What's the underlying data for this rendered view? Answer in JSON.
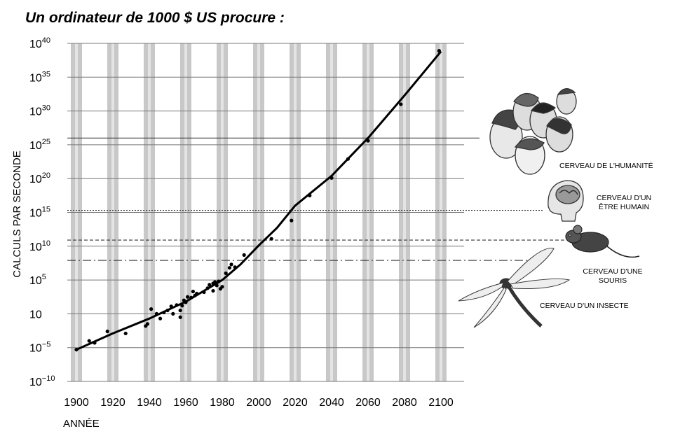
{
  "chart_data": {
    "type": "scatter",
    "title": "Un ordinateur de 1000 $ US procure :",
    "xlabel": "ANNÉE",
    "ylabel": "CALCULS PAR SECONDE",
    "y_scale": "log10",
    "xlim": [
      1900,
      2100
    ],
    "ylim_exponent": [
      -10,
      40
    ],
    "x_ticks": [
      "1900",
      "1920",
      "1940",
      "1960",
      "1980",
      "2000",
      "2020",
      "2040",
      "2060",
      "2080",
      "2100"
    ],
    "y_ticks": [
      {
        "base": "10",
        "exp": "40"
      },
      {
        "base": "10",
        "exp": "35"
      },
      {
        "base": "10",
        "exp": "30"
      },
      {
        "base": "10",
        "exp": "25"
      },
      {
        "base": "10",
        "exp": "20"
      },
      {
        "base": "10",
        "exp": "15"
      },
      {
        "base": "10",
        "exp": "10"
      },
      {
        "base": "10",
        "exp": "5"
      },
      {
        "base": "10",
        "exp": ""
      },
      {
        "base": "10",
        "exp": "−5"
      },
      {
        "base": "10",
        "exp": "−10"
      }
    ],
    "grid": true,
    "series": [
      {
        "values_note": "",
        "points": [
          [
            1900,
            -5.3
          ],
          [
            1907,
            -4.0
          ],
          [
            1910,
            -4.3
          ],
          [
            1917,
            -2.6
          ],
          [
            1927,
            -2.9
          ],
          [
            1938,
            -1.8
          ],
          [
            1939,
            -1.5
          ],
          [
            1941,
            0.7
          ],
          [
            1944,
            0.0
          ],
          [
            1946,
            -0.7
          ],
          [
            1948,
            0.2
          ],
          [
            1950,
            0.5
          ],
          [
            1952,
            1.1
          ],
          [
            1953,
            0.0
          ],
          [
            1955,
            1.3
          ],
          [
            1957,
            -0.5
          ],
          [
            1957,
            0.5
          ],
          [
            1958,
            1.2
          ],
          [
            1959,
            2.0
          ],
          [
            1960,
            1.7
          ],
          [
            1961,
            2.5
          ],
          [
            1963,
            2.4
          ],
          [
            1964,
            3.3
          ],
          [
            1965,
            2.7
          ],
          [
            1966,
            3.0
          ],
          [
            1970,
            3.2
          ],
          [
            1972,
            3.8
          ],
          [
            1973,
            4.3
          ],
          [
            1975,
            3.4
          ],
          [
            1975,
            4.5
          ],
          [
            1976,
            4.7
          ],
          [
            1977,
            4.2
          ],
          [
            1978,
            4.8
          ],
          [
            1979,
            3.7
          ],
          [
            1980,
            4.0
          ],
          [
            1982,
            6.0
          ],
          [
            1984,
            6.8
          ],
          [
            1985,
            7.3
          ],
          [
            1987,
            6.9
          ],
          [
            1992,
            8.7
          ],
          [
            2007,
            11.1
          ],
          [
            2018,
            13.8
          ],
          [
            2028,
            17.5
          ],
          [
            2040,
            20.1
          ],
          [
            2049,
            22.9
          ],
          [
            2060,
            25.6
          ],
          [
            2078,
            31.0
          ],
          [
            2099,
            38.9
          ]
        ]
      }
    ],
    "trend_line": [
      [
        1900,
        -5.3
      ],
      [
        1920,
        -2.9
      ],
      [
        1940,
        -0.7
      ],
      [
        1960,
        1.8
      ],
      [
        1980,
        5.0
      ],
      [
        1990,
        7.3
      ],
      [
        2000,
        10.1
      ],
      [
        2010,
        12.7
      ],
      [
        2020,
        16.0
      ],
      [
        2040,
        20.4
      ],
      [
        2060,
        26.0
      ],
      [
        2080,
        32.3
      ],
      [
        2100,
        38.8
      ]
    ],
    "reference_levels": [
      {
        "label_lines": [
          "CERVEAU DE L'HUMANITÉ"
        ],
        "exponent": 26.0,
        "style": "solid",
        "icon": "human-faces-illustration"
      },
      {
        "label_lines": [
          "CERVEAU D'UN",
          "ÊTRE HUMAIN"
        ],
        "exponent": 15.3,
        "style": "dotted",
        "icon": "human-head-brain-illustration"
      },
      {
        "label_lines": [
          "CERVEAU D'UNE",
          "SOURIS"
        ],
        "exponent": 10.9,
        "style": "dashed",
        "icon": "mouse-illustration"
      },
      {
        "label_lines": [
          "CERVEAU D'UN INSECTE"
        ],
        "exponent": 7.9,
        "style": "dash-dot",
        "icon": "dragonfly-illustration"
      }
    ]
  }
}
